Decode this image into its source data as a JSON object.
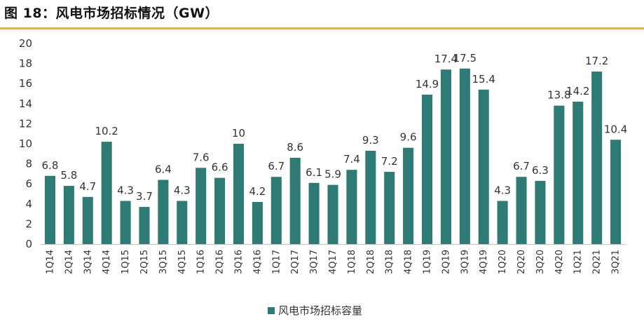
{
  "title": "图 18：风电市场招标情况（GW）",
  "colors": {
    "bar": "#2e7a74",
    "title_rule": "#e8b23c",
    "axis": "#bfbfbf"
  },
  "chart_data": {
    "type": "bar",
    "categories": [
      "1Q14",
      "2Q14",
      "3Q14",
      "4Q14",
      "1Q15",
      "2Q15",
      "3Q15",
      "4Q15",
      "1Q16",
      "2Q16",
      "3Q16",
      "4Q16",
      "1Q17",
      "2Q17",
      "3Q17",
      "4Q17",
      "1Q18",
      "2Q18",
      "3Q18",
      "4Q18",
      "1Q19",
      "2Q19",
      "3Q19",
      "4Q19",
      "1Q20",
      "2Q20",
      "3Q20",
      "4Q20",
      "1Q21",
      "2Q21",
      "3Q21"
    ],
    "series": [
      {
        "name": "风电市场招标容量",
        "values": [
          6.8,
          5.8,
          4.7,
          10.2,
          4.3,
          3.7,
          6.4,
          4.3,
          7.6,
          6.6,
          10,
          4.2,
          6.7,
          8.6,
          6.1,
          5.9,
          7.4,
          9.3,
          7.2,
          9.6,
          14.9,
          17.4,
          17.5,
          15.4,
          4.3,
          6.7,
          6.3,
          13.8,
          14.2,
          17.2,
          10.4
        ]
      }
    ],
    "yticks": [
      0,
      2,
      4,
      6,
      8,
      10,
      12,
      14,
      16,
      18,
      20
    ],
    "ylim": [
      0,
      20
    ],
    "grid": false,
    "legend_position": "bottom-center"
  }
}
